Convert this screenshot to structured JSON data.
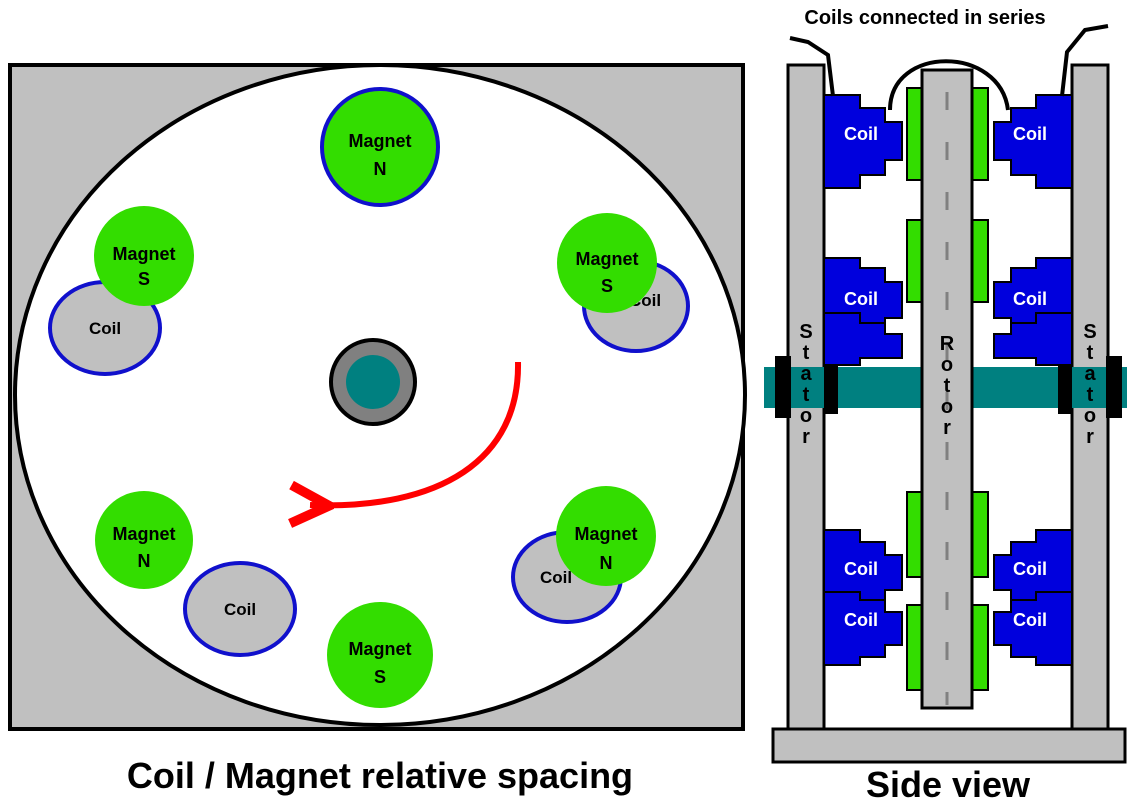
{
  "front_view": {
    "caption": "Coil / Magnet relative spacing",
    "magnets": [
      {
        "line1": "Magnet",
        "line2": "N"
      },
      {
        "line1": "Magnet",
        "line2": "S"
      },
      {
        "line1": "Magnet",
        "line2": "S"
      },
      {
        "line1": "Magnet",
        "line2": "N"
      },
      {
        "line1": "Magnet",
        "line2": "N"
      },
      {
        "line1": "Magnet",
        "line2": "S"
      }
    ],
    "coils": [
      "Coil",
      "Coil",
      "Coil",
      "Coil"
    ]
  },
  "side_view": {
    "caption": "Side view",
    "wiring_label": "Coils connected in series",
    "stator_label": [
      "S",
      "t",
      "a",
      "t",
      "o",
      "r"
    ],
    "rotor_label": [
      "R",
      "o",
      "t",
      "o",
      "r"
    ],
    "coil_label": "Coil"
  },
  "colors": {
    "magnet": "#33dd00",
    "coil_outline": "#1010cc",
    "coil_fill": "#c0c0c0",
    "coil_block": "#0000dd",
    "shaft": "#008080",
    "arrow": "#ff0000",
    "panel": "#c0c0c0"
  }
}
